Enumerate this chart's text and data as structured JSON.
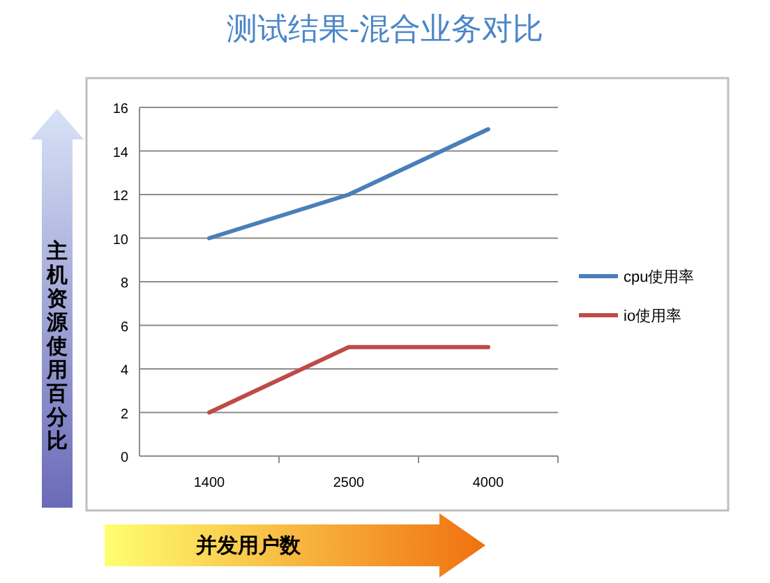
{
  "chart_data": {
    "type": "line",
    "title": "测试结果-混合业务对比",
    "xlabel": "并发用户数",
    "ylabel": "主机资源使用百分比",
    "categories": [
      "1400",
      "2500",
      "4000"
    ],
    "series": [
      {
        "name": "cpu使用率",
        "color": "#4a7ebb",
        "values": [
          10,
          12,
          15
        ]
      },
      {
        "name": "io使用率",
        "color": "#be4b48",
        "values": [
          2,
          5,
          5
        ]
      }
    ],
    "ylim": [
      0,
      16
    ],
    "yticks": [
      0,
      2,
      4,
      6,
      8,
      10,
      12,
      14,
      16
    ],
    "grid": "y",
    "legend": "right"
  }
}
